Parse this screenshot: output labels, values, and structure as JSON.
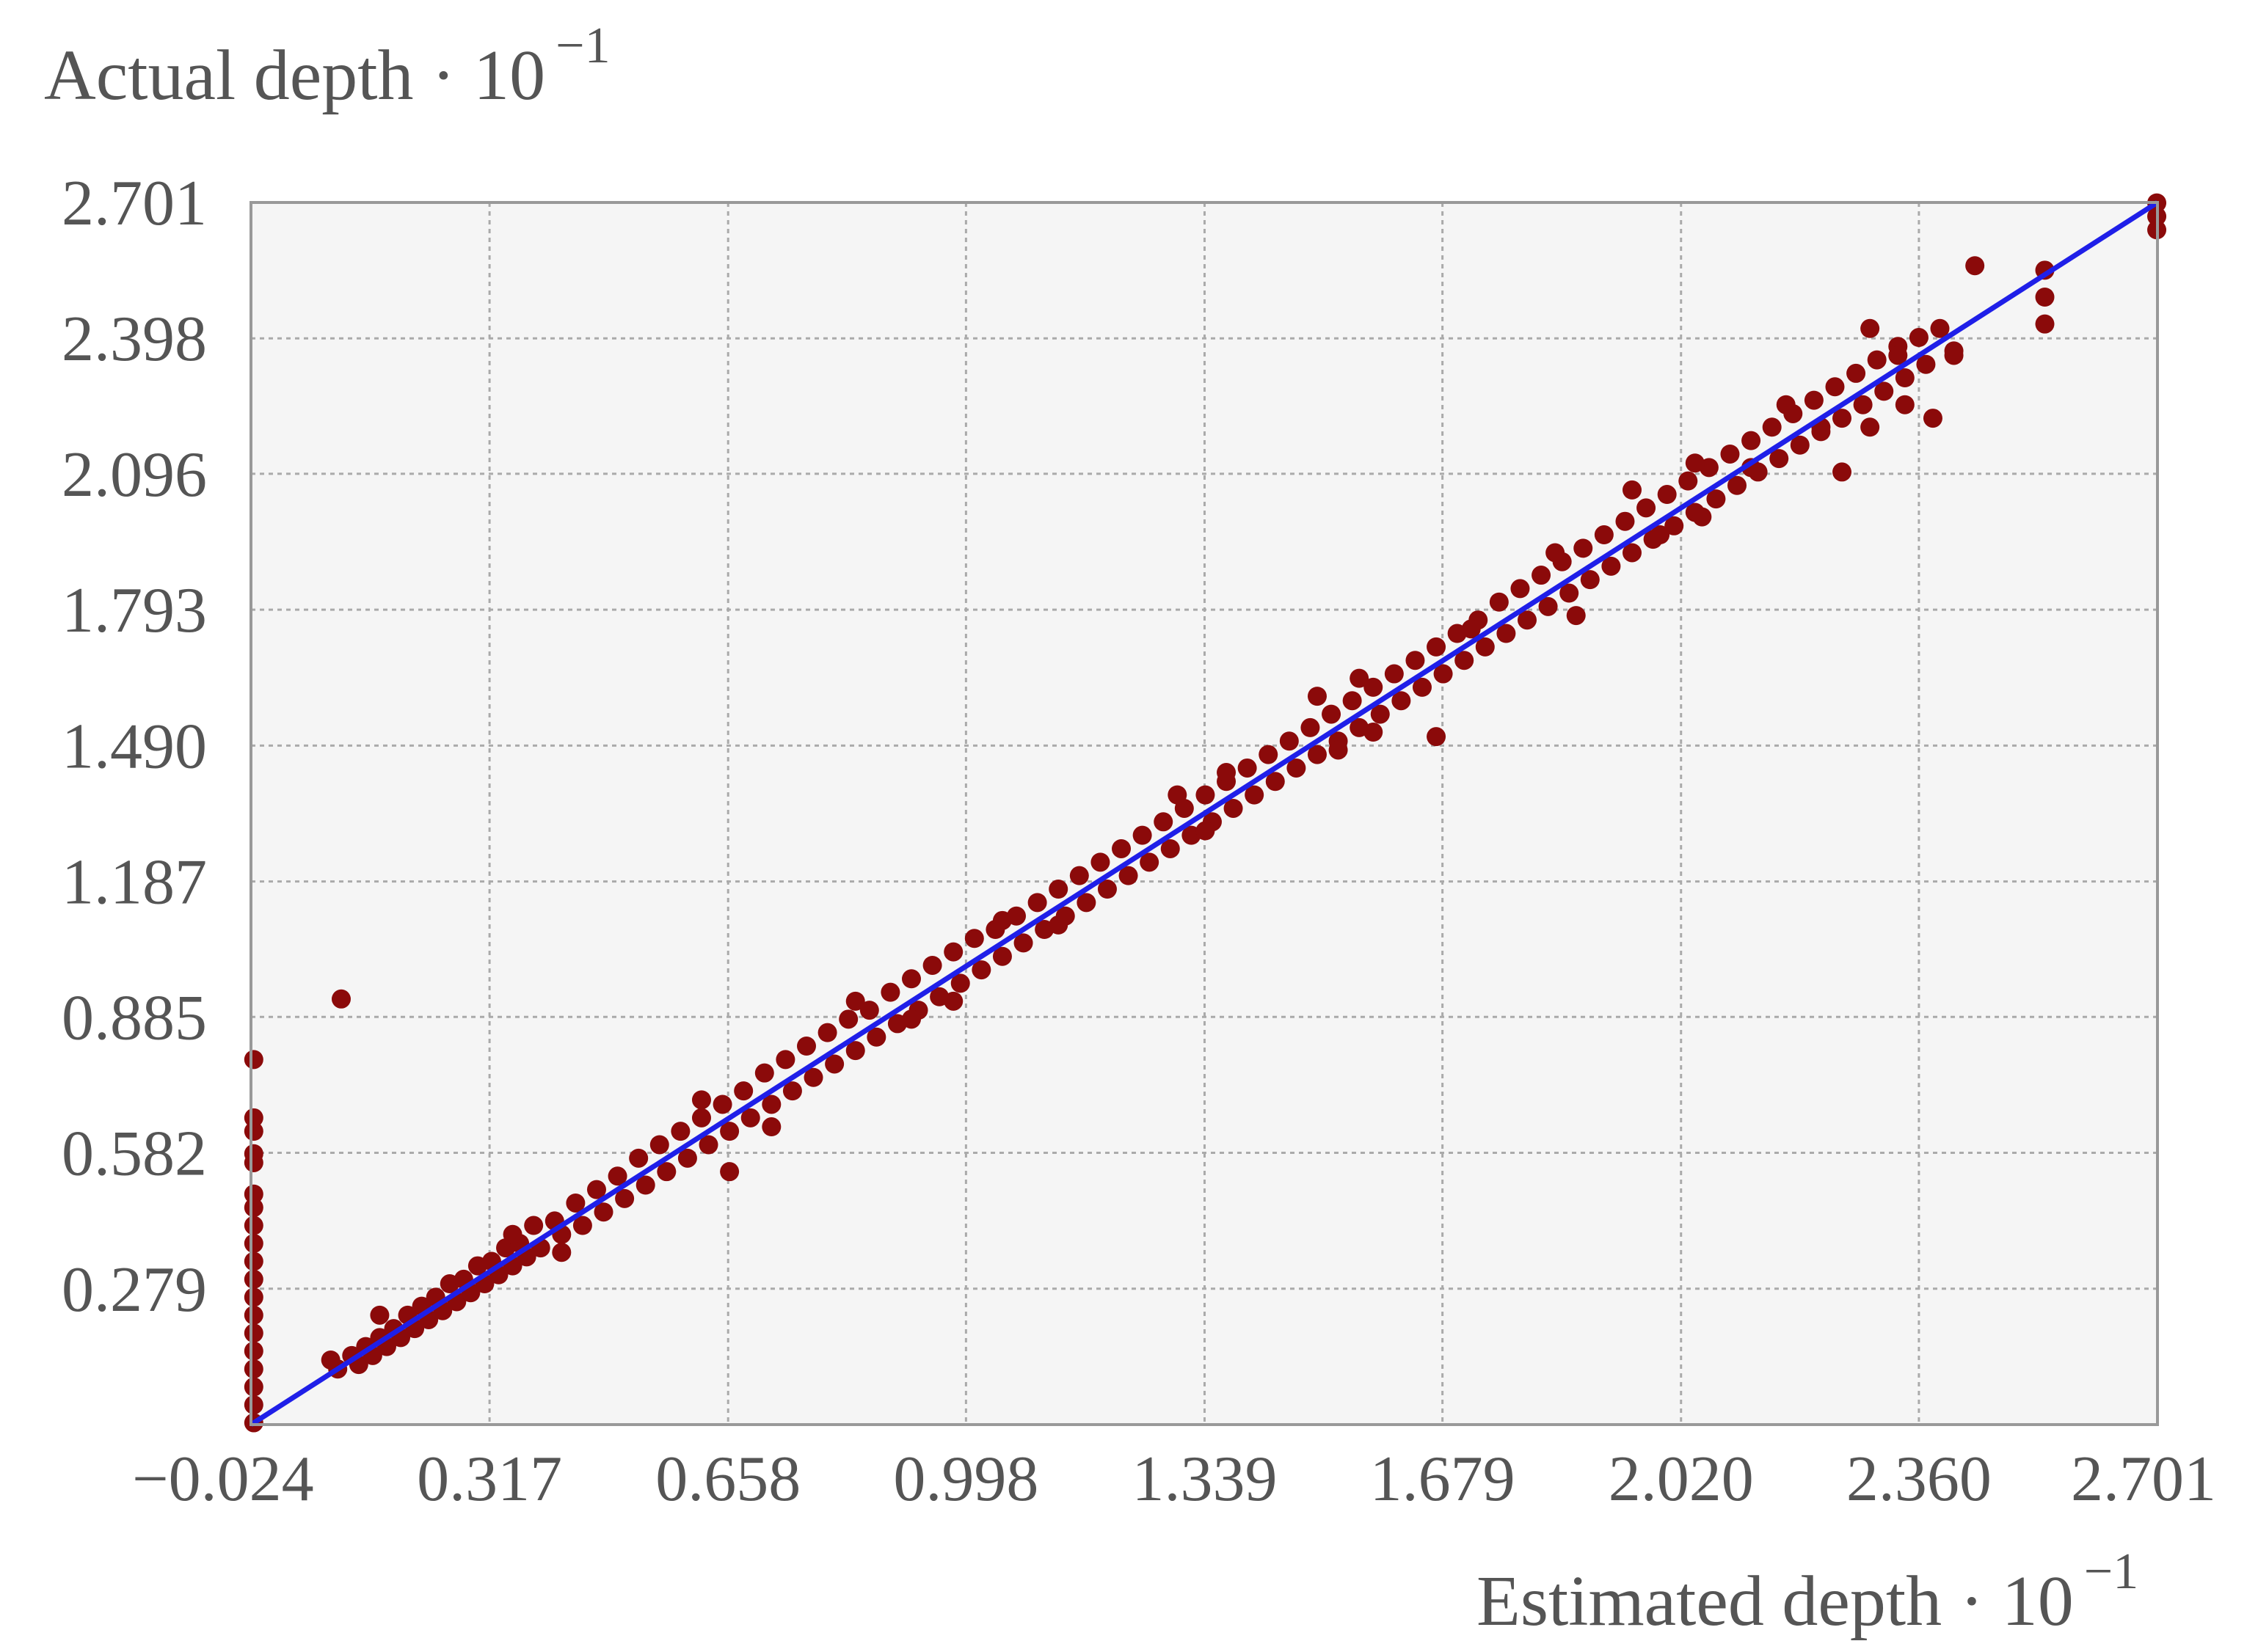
{
  "chart_data": {
    "type": "scatter",
    "title": "",
    "xlabel": "Estimated depth · 10",
    "xlabel_exponent": "−1",
    "ylabel": "Actual depth · 10",
    "ylabel_exponent": "−1",
    "xlim": [
      -0.024,
      2.701
    ],
    "ylim": [
      -0.024,
      2.701
    ],
    "x_ticks": [
      -0.024,
      0.317,
      0.658,
      0.998,
      1.339,
      1.679,
      2.02,
      2.36,
      2.701
    ],
    "x_tick_labels": [
      "−0.024",
      "0.317",
      "0.658",
      "0.998",
      "1.339",
      "1.679",
      "2.020",
      "2.360",
      "2.701"
    ],
    "y_ticks": [
      0.279,
      0.582,
      0.885,
      1.187,
      1.49,
      1.793,
      2.096,
      2.398,
      2.701
    ],
    "y_tick_labels": [
      "0.279",
      "0.582",
      "0.885",
      "1.187",
      "1.490",
      "1.793",
      "2.096",
      "2.398",
      "2.701"
    ],
    "grid": true,
    "colors": {
      "points": "#8b0a0a",
      "reference_line": "#1f1fe8",
      "plot_background": "#f5f5f5",
      "grid": "#aaaaaa",
      "frame": "#999999",
      "text": "#555555"
    },
    "series": [
      {
        "type": "scatter",
        "points": [
          [
            -0.02,
            -0.02
          ],
          [
            -0.02,
            0.02
          ],
          [
            -0.02,
            0.06
          ],
          [
            -0.02,
            0.1
          ],
          [
            -0.02,
            0.14
          ],
          [
            -0.02,
            0.18
          ],
          [
            -0.02,
            0.22
          ],
          [
            -0.02,
            0.26
          ],
          [
            -0.02,
            0.3
          ],
          [
            -0.02,
            0.34
          ],
          [
            -0.02,
            0.38
          ],
          [
            -0.02,
            0.42
          ],
          [
            -0.02,
            0.46
          ],
          [
            -0.02,
            0.49
          ],
          [
            -0.02,
            0.56
          ],
          [
            -0.02,
            0.58
          ],
          [
            -0.02,
            0.63
          ],
          [
            -0.02,
            0.66
          ],
          [
            -0.02,
            0.79
          ],
          [
            0.105,
            0.925
          ],
          [
            0.09,
            0.12
          ],
          [
            0.1,
            0.1
          ],
          [
            0.12,
            0.13
          ],
          [
            0.13,
            0.11
          ],
          [
            0.14,
            0.15
          ],
          [
            0.15,
            0.13
          ],
          [
            0.16,
            0.17
          ],
          [
            0.17,
            0.15
          ],
          [
            0.18,
            0.19
          ],
          [
            0.19,
            0.17
          ],
          [
            0.2,
            0.22
          ],
          [
            0.21,
            0.19
          ],
          [
            0.22,
            0.24
          ],
          [
            0.23,
            0.21
          ],
          [
            0.24,
            0.26
          ],
          [
            0.25,
            0.23
          ],
          [
            0.26,
            0.29
          ],
          [
            0.27,
            0.25
          ],
          [
            0.28,
            0.3
          ],
          [
            0.29,
            0.27
          ],
          [
            0.3,
            0.33
          ],
          [
            0.31,
            0.29
          ],
          [
            0.32,
            0.34
          ],
          [
            0.33,
            0.31
          ],
          [
            0.34,
            0.37
          ],
          [
            0.35,
            0.33
          ],
          [
            0.36,
            0.38
          ],
          [
            0.37,
            0.35
          ],
          [
            0.38,
            0.42
          ],
          [
            0.39,
            0.37
          ],
          [
            0.41,
            0.43
          ],
          [
            0.42,
            0.4
          ],
          [
            0.44,
            0.47
          ],
          [
            0.45,
            0.42
          ],
          [
            0.47,
            0.5
          ],
          [
            0.48,
            0.45
          ],
          [
            0.5,
            0.53
          ],
          [
            0.51,
            0.48
          ],
          [
            0.53,
            0.57
          ],
          [
            0.54,
            0.51
          ],
          [
            0.56,
            0.6
          ],
          [
            0.57,
            0.54
          ],
          [
            0.59,
            0.63
          ],
          [
            0.6,
            0.57
          ],
          [
            0.62,
            0.66
          ],
          [
            0.63,
            0.6
          ],
          [
            0.65,
            0.69
          ],
          [
            0.66,
            0.63
          ],
          [
            0.68,
            0.72
          ],
          [
            0.69,
            0.66
          ],
          [
            0.71,
            0.76
          ],
          [
            0.72,
            0.69
          ],
          [
            0.74,
            0.79
          ],
          [
            0.75,
            0.72
          ],
          [
            0.77,
            0.82
          ],
          [
            0.78,
            0.75
          ],
          [
            0.8,
            0.85
          ],
          [
            0.81,
            0.78
          ],
          [
            0.83,
            0.88
          ],
          [
            0.84,
            0.81
          ],
          [
            0.86,
            0.9
          ],
          [
            0.87,
            0.84
          ],
          [
            0.89,
            0.94
          ],
          [
            0.9,
            0.87
          ],
          [
            0.92,
            0.97
          ],
          [
            0.93,
            0.9
          ],
          [
            0.95,
            1.0
          ],
          [
            0.96,
            0.93
          ],
          [
            0.98,
            1.03
          ],
          [
            0.99,
            0.96
          ],
          [
            1.01,
            1.06
          ],
          [
            1.02,
            0.99
          ],
          [
            1.04,
            1.08
          ],
          [
            1.05,
            1.02
          ],
          [
            1.07,
            1.11
          ],
          [
            1.08,
            1.05
          ],
          [
            1.1,
            1.14
          ],
          [
            1.11,
            1.08
          ],
          [
            1.13,
            1.17
          ],
          [
            1.14,
            1.11
          ],
          [
            1.16,
            1.2
          ],
          [
            1.17,
            1.14
          ],
          [
            1.19,
            1.23
          ],
          [
            1.2,
            1.17
          ],
          [
            1.22,
            1.26
          ],
          [
            1.23,
            1.2
          ],
          [
            1.25,
            1.29
          ],
          [
            1.26,
            1.23
          ],
          [
            1.28,
            1.32
          ],
          [
            1.29,
            1.26
          ],
          [
            1.31,
            1.35
          ],
          [
            1.32,
            1.29
          ],
          [
            1.34,
            1.38
          ],
          [
            1.35,
            1.32
          ],
          [
            1.37,
            1.41
          ],
          [
            1.38,
            1.35
          ],
          [
            1.4,
            1.44
          ],
          [
            1.41,
            1.38
          ],
          [
            1.43,
            1.47
          ],
          [
            1.44,
            1.41
          ],
          [
            1.46,
            1.5
          ],
          [
            1.47,
            1.44
          ],
          [
            1.49,
            1.53
          ],
          [
            1.5,
            1.47
          ],
          [
            1.52,
            1.56
          ],
          [
            1.53,
            1.5
          ],
          [
            1.55,
            1.59
          ],
          [
            1.56,
            1.53
          ],
          [
            1.58,
            1.62
          ],
          [
            1.59,
            1.56
          ],
          [
            1.61,
            1.65
          ],
          [
            1.62,
            1.59
          ],
          [
            1.64,
            1.68
          ],
          [
            1.65,
            1.62
          ],
          [
            1.67,
            1.71
          ],
          [
            1.68,
            1.65
          ],
          [
            1.7,
            1.74
          ],
          [
            1.71,
            1.68
          ],
          [
            1.73,
            1.77
          ],
          [
            1.74,
            1.71
          ],
          [
            1.76,
            1.81
          ],
          [
            1.77,
            1.74
          ],
          [
            1.79,
            1.84
          ],
          [
            1.8,
            1.77
          ],
          [
            1.82,
            1.87
          ],
          [
            1.83,
            1.8
          ],
          [
            1.85,
            1.9
          ],
          [
            1.86,
            1.83
          ],
          [
            1.88,
            1.93
          ],
          [
            1.89,
            1.86
          ],
          [
            1.91,
            1.96
          ],
          [
            1.92,
            1.89
          ],
          [
            1.94,
            1.99
          ],
          [
            1.95,
            1.92
          ],
          [
            1.97,
            2.02
          ],
          [
            1.98,
            1.95
          ],
          [
            2.0,
            2.05
          ],
          [
            2.01,
            1.98
          ],
          [
            2.03,
            2.08
          ],
          [
            2.04,
            2.01
          ],
          [
            2.06,
            2.11
          ],
          [
            2.07,
            2.04
          ],
          [
            2.09,
            2.14
          ],
          [
            2.1,
            2.07
          ],
          [
            2.12,
            2.17
          ],
          [
            2.13,
            2.1
          ],
          [
            2.15,
            2.2
          ],
          [
            2.16,
            2.13
          ],
          [
            2.18,
            2.23
          ],
          [
            2.19,
            2.16
          ],
          [
            2.21,
            2.26
          ],
          [
            2.22,
            2.19
          ],
          [
            2.24,
            2.29
          ],
          [
            2.25,
            2.22
          ],
          [
            2.27,
            2.32
          ],
          [
            2.28,
            2.25
          ],
          [
            2.3,
            2.35
          ],
          [
            2.31,
            2.28
          ],
          [
            2.33,
            2.38
          ],
          [
            2.34,
            2.31
          ],
          [
            2.36,
            2.4
          ],
          [
            2.37,
            2.34
          ],
          [
            2.39,
            2.42
          ],
          [
            0.16,
            0.22
          ],
          [
            0.35,
            0.4
          ],
          [
            0.42,
            0.36
          ],
          [
            0.62,
            0.7
          ],
          [
            0.66,
            0.54
          ],
          [
            0.72,
            0.64
          ],
          [
            0.84,
            0.92
          ],
          [
            0.92,
            0.88
          ],
          [
            0.98,
            0.92
          ],
          [
            1.05,
            1.1
          ],
          [
            1.13,
            1.09
          ],
          [
            1.3,
            1.38
          ],
          [
            1.34,
            1.3
          ],
          [
            1.37,
            1.43
          ],
          [
            1.5,
            1.6
          ],
          [
            1.53,
            1.48
          ],
          [
            1.56,
            1.64
          ],
          [
            1.58,
            1.52
          ],
          [
            1.67,
            1.51
          ],
          [
            1.72,
            1.75
          ],
          [
            1.84,
            1.92
          ],
          [
            1.87,
            1.78
          ],
          [
            1.95,
            2.06
          ],
          [
            1.99,
            1.96
          ],
          [
            2.04,
            2.12
          ],
          [
            2.05,
            2.0
          ],
          [
            2.12,
            2.11
          ],
          [
            2.17,
            2.25
          ],
          [
            2.22,
            2.2
          ],
          [
            2.25,
            2.1
          ],
          [
            2.29,
            2.42
          ],
          [
            2.29,
            2.2
          ],
          [
            2.33,
            2.36
          ],
          [
            2.34,
            2.25
          ],
          [
            2.41,
            2.37
          ],
          [
            2.41,
            2.36
          ],
          [
            2.38,
            2.22
          ],
          [
            2.44,
            2.56
          ],
          [
            2.54,
            2.55
          ],
          [
            2.54,
            2.49
          ],
          [
            2.54,
            2.43
          ],
          [
            2.7,
            2.7
          ],
          [
            2.7,
            2.67
          ],
          [
            2.7,
            2.64
          ]
        ]
      },
      {
        "type": "line",
        "x": [
          -0.024,
          2.701
        ],
        "y": [
          -0.024,
          2.701
        ]
      }
    ]
  }
}
